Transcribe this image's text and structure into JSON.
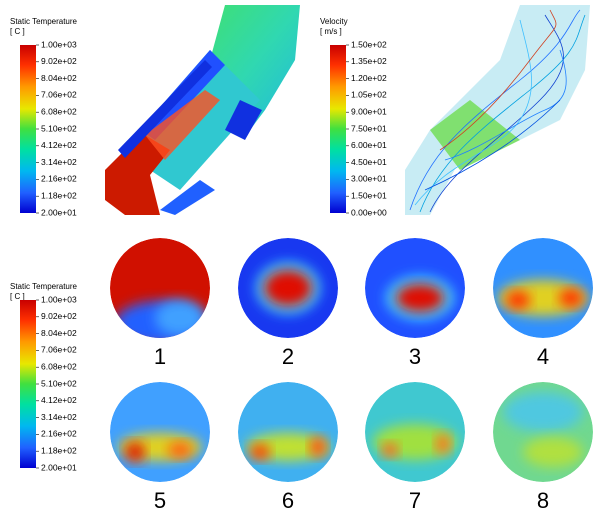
{
  "legends": [
    {
      "title": "Static Temperature",
      "unit": "[ C ]",
      "ticks": [
        "1.00e+03",
        "9.02e+02",
        "8.04e+02",
        "7.06e+02",
        "6.08e+02",
        "5.10e+02",
        "4.12e+02",
        "3.14e+02",
        "2.16e+02",
        "1.18e+02",
        "2.00e+01"
      ]
    },
    {
      "title": "Velocity",
      "unit": "[ m/s ]",
      "ticks": [
        "1.50e+02",
        "1.35e+02",
        "1.20e+02",
        "1.05e+02",
        "9.00e+01",
        "7.50e+01",
        "6.00e+01",
        "4.50e+01",
        "3.00e+01",
        "1.50e+01",
        "0.00e+00"
      ]
    },
    {
      "title": "Static Temperature",
      "unit": "[ C ]",
      "ticks": [
        "1.00e+03",
        "9.02e+02",
        "8.04e+02",
        "7.06e+02",
        "6.08e+02",
        "5.10e+02",
        "4.12e+02",
        "3.14e+02",
        "2.16e+02",
        "1.18e+02",
        "2.00e+01"
      ]
    }
  ],
  "sections": [
    "1",
    "2",
    "3",
    "4",
    "5",
    "6",
    "7",
    "8"
  ]
}
